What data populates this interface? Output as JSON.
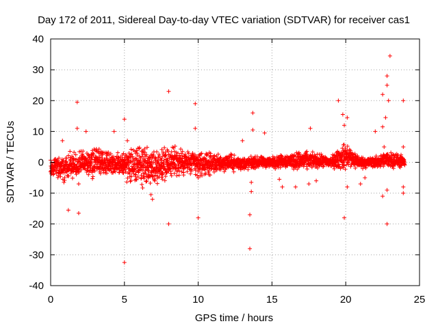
{
  "chart_data": {
    "type": "scatter",
    "title": "Day 172 of 2011, Sidereal Day-to-day VTEC variation (SDTVAR) for receiver cas1",
    "xlabel": "GPS time / hours",
    "ylabel": "SDTVAR / TECUs",
    "xlim": [
      0,
      25
    ],
    "ylim": [
      -40,
      40
    ],
    "xticks": [
      0,
      5,
      10,
      15,
      20,
      25
    ],
    "yticks": [
      -40,
      -30,
      -20,
      -10,
      0,
      10,
      20,
      30,
      40
    ],
    "xtick_labels": [
      "0",
      "5",
      "10",
      "15",
      "20",
      "25"
    ],
    "ytick_labels": [
      "-40",
      "-30",
      "-20",
      "-10",
      "0",
      "10",
      "20",
      "30",
      "40"
    ],
    "grid": true,
    "marker": "+",
    "color": "#ff0000",
    "band": {
      "description": "dense red band of points around zero across the day",
      "envelope": [
        {
          "x": 0.0,
          "lo": -5,
          "hi": 2
        },
        {
          "x": 1.0,
          "lo": -6,
          "hi": 3
        },
        {
          "x": 2.0,
          "lo": -5,
          "hi": 4
        },
        {
          "x": 3.0,
          "lo": -5,
          "hi": 5
        },
        {
          "x": 4.0,
          "lo": -4,
          "hi": 4
        },
        {
          "x": 5.0,
          "lo": -6,
          "hi": 4
        },
        {
          "x": 6.0,
          "lo": -9,
          "hi": 6
        },
        {
          "x": 7.0,
          "lo": -8,
          "hi": 5
        },
        {
          "x": 8.0,
          "lo": -6,
          "hi": 6
        },
        {
          "x": 9.0,
          "lo": -5,
          "hi": 5
        },
        {
          "x": 10.0,
          "lo": -5,
          "hi": 4
        },
        {
          "x": 11.0,
          "lo": -4,
          "hi": 3
        },
        {
          "x": 12.0,
          "lo": -3,
          "hi": 3
        },
        {
          "x": 13.0,
          "lo": -3,
          "hi": 2
        },
        {
          "x": 14.0,
          "lo": -2,
          "hi": 2
        },
        {
          "x": 15.0,
          "lo": -2,
          "hi": 2
        },
        {
          "x": 16.0,
          "lo": -2,
          "hi": 3
        },
        {
          "x": 17.0,
          "lo": -3,
          "hi": 4
        },
        {
          "x": 18.0,
          "lo": -2,
          "hi": 3
        },
        {
          "x": 19.0,
          "lo": -2,
          "hi": 2
        },
        {
          "x": 20.0,
          "lo": -3,
          "hi": 7
        },
        {
          "x": 21.0,
          "lo": -2,
          "hi": 2
        },
        {
          "x": 22.0,
          "lo": -2,
          "hi": 2
        },
        {
          "x": 23.0,
          "lo": -2,
          "hi": 4
        },
        {
          "x": 24.0,
          "lo": -2,
          "hi": 2
        }
      ]
    },
    "outliers": [
      {
        "x": 0.8,
        "y": 7
      },
      {
        "x": 0.9,
        "y": -6.5
      },
      {
        "x": 1.2,
        "y": -15.5
      },
      {
        "x": 1.8,
        "y": 19.5
      },
      {
        "x": 1.8,
        "y": 11
      },
      {
        "x": 1.9,
        "y": -16.5
      },
      {
        "x": 1.9,
        "y": -7
      },
      {
        "x": 2.4,
        "y": 10
      },
      {
        "x": 4.3,
        "y": 10
      },
      {
        "x": 5.0,
        "y": 14
      },
      {
        "x": 5.0,
        "y": -32.5
      },
      {
        "x": 5.2,
        "y": 7
      },
      {
        "x": 6.8,
        "y": -10.5
      },
      {
        "x": 6.9,
        "y": -12
      },
      {
        "x": 8.0,
        "y": 23
      },
      {
        "x": 8.0,
        "y": -20
      },
      {
        "x": 9.8,
        "y": 19
      },
      {
        "x": 9.8,
        "y": 11
      },
      {
        "x": 10.0,
        "y": -18
      },
      {
        "x": 10.0,
        "y": -5
      },
      {
        "x": 13.5,
        "y": -17
      },
      {
        "x": 13.5,
        "y": -28
      },
      {
        "x": 13.7,
        "y": 16
      },
      {
        "x": 13.7,
        "y": 10.5
      },
      {
        "x": 13.6,
        "y": -9.5
      },
      {
        "x": 13.6,
        "y": -6.5
      },
      {
        "x": 13.0,
        "y": 7
      },
      {
        "x": 14.5,
        "y": 9.5
      },
      {
        "x": 15.5,
        "y": -5.5
      },
      {
        "x": 15.7,
        "y": -8
      },
      {
        "x": 16.6,
        "y": -8
      },
      {
        "x": 17.5,
        "y": -7
      },
      {
        "x": 17.6,
        "y": 11
      },
      {
        "x": 18.0,
        "y": -6
      },
      {
        "x": 19.5,
        "y": 20
      },
      {
        "x": 19.8,
        "y": 15.5
      },
      {
        "x": 19.9,
        "y": 12
      },
      {
        "x": 20.1,
        "y": 14.5
      },
      {
        "x": 20.1,
        "y": -8
      },
      {
        "x": 19.9,
        "y": -18
      },
      {
        "x": 21.0,
        "y": -7
      },
      {
        "x": 21.3,
        "y": -5
      },
      {
        "x": 22.0,
        "y": 10
      },
      {
        "x": 22.5,
        "y": 11.5
      },
      {
        "x": 22.5,
        "y": 22
      },
      {
        "x": 22.5,
        "y": -11
      },
      {
        "x": 22.7,
        "y": 14.5
      },
      {
        "x": 22.8,
        "y": 28
      },
      {
        "x": 22.8,
        "y": 25
      },
      {
        "x": 22.9,
        "y": 20
      },
      {
        "x": 23.0,
        "y": 34.5
      },
      {
        "x": 22.8,
        "y": -20
      },
      {
        "x": 22.8,
        "y": -9
      },
      {
        "x": 22.6,
        "y": 5
      },
      {
        "x": 23.9,
        "y": 20
      },
      {
        "x": 23.9,
        "y": 5
      },
      {
        "x": 23.9,
        "y": -8
      },
      {
        "x": 23.9,
        "y": -10
      }
    ]
  }
}
